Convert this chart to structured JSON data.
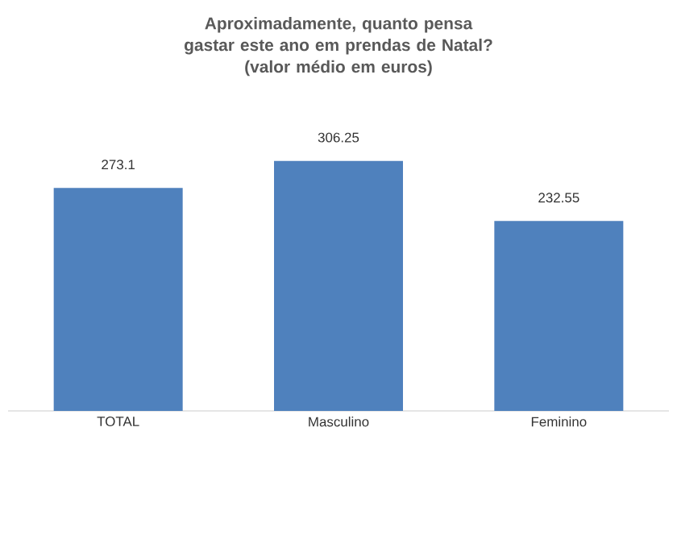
{
  "chart_data": {
    "type": "bar",
    "title": "Aproximadamente, quanto pensa gastar este ano em prendas de Natal?",
    "subtitle": "(valor médio em euros)",
    "categories": [
      "TOTAL",
      "Masculino",
      "Feminino"
    ],
    "values": [
      273.1,
      306.25,
      232.55
    ],
    "color": "#4f81bd",
    "tick_labels": "x",
    "data_labels": true
  }
}
